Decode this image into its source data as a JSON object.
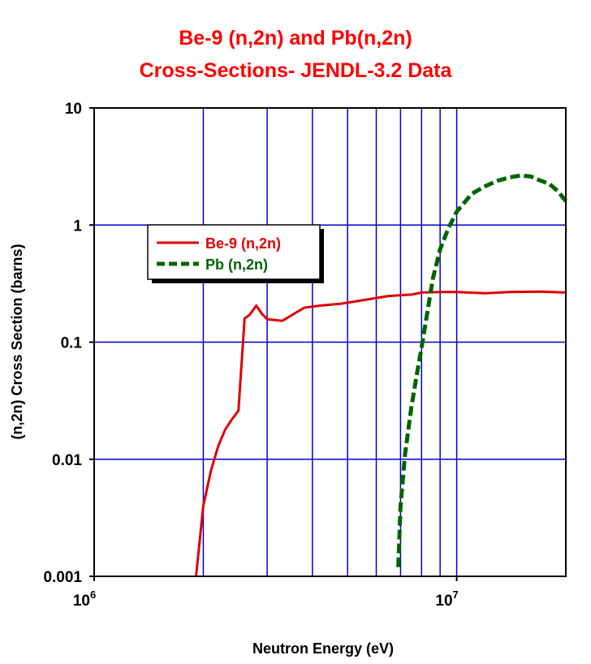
{
  "colors": {
    "title": "#ff0000",
    "grid": "#0000cc",
    "be9": "#dd0000",
    "pb": "#006400"
  },
  "chart_data": {
    "type": "line",
    "title_line1": "Be-9 (n,2n) and Pb(n,2n)",
    "title_line2": "Cross-Sections- JENDL-3.2 Data",
    "xlabel": "Neutron Energy (eV)",
    "ylabel": "(n,2n) Cross Section (barns)",
    "x_scale": "log",
    "y_scale": "log",
    "xlim": [
      1000000,
      20000000
    ],
    "ylim": [
      0.001,
      10
    ],
    "grid": true,
    "legend_position": "upper-left",
    "x_tick_labels": [
      {
        "base": "10",
        "exp": "6"
      },
      {
        "base": "10",
        "exp": "7"
      }
    ],
    "y_tick_labels": [
      "10",
      "1",
      "0.1",
      "0.01",
      "0.001"
    ],
    "series": [
      {
        "name": "Be-9 (n,2n)",
        "style": "solid",
        "x": [
          1910000,
          2000000,
          2100000,
          2200000,
          2300000,
          2400000,
          2500000,
          2600000,
          2680000,
          2800000,
          2900000,
          3000000,
          3300000,
          3800000,
          4200000,
          4800000,
          5500000,
          6500000,
          7500000,
          8000000,
          9000000,
          10000000,
          12000000,
          14000000,
          17000000,
          20000000
        ],
        "y": [
          0.001,
          0.004,
          0.008,
          0.013,
          0.018,
          0.022,
          0.026,
          0.16,
          0.17,
          0.205,
          0.175,
          0.157,
          0.152,
          0.197,
          0.205,
          0.213,
          0.228,
          0.248,
          0.255,
          0.265,
          0.268,
          0.268,
          0.262,
          0.268,
          0.27,
          0.265
        ]
      },
      {
        "name": "Pb (n,2n)",
        "style": "dashed",
        "x": [
          6900000,
          7000000,
          7200000,
          7500000,
          7800000,
          8000000,
          8300000,
          8600000,
          9000000,
          9500000,
          10000000,
          11000000,
          12000000,
          13000000,
          14000000,
          15000000,
          16000000,
          17000000,
          18000000,
          19000000,
          20000000
        ],
        "y": [
          0.0012,
          0.004,
          0.011,
          0.028,
          0.058,
          0.09,
          0.18,
          0.35,
          0.62,
          0.95,
          1.3,
          1.85,
          2.15,
          2.4,
          2.55,
          2.65,
          2.6,
          2.4,
          2.25,
          1.95,
          1.6
        ]
      }
    ]
  }
}
